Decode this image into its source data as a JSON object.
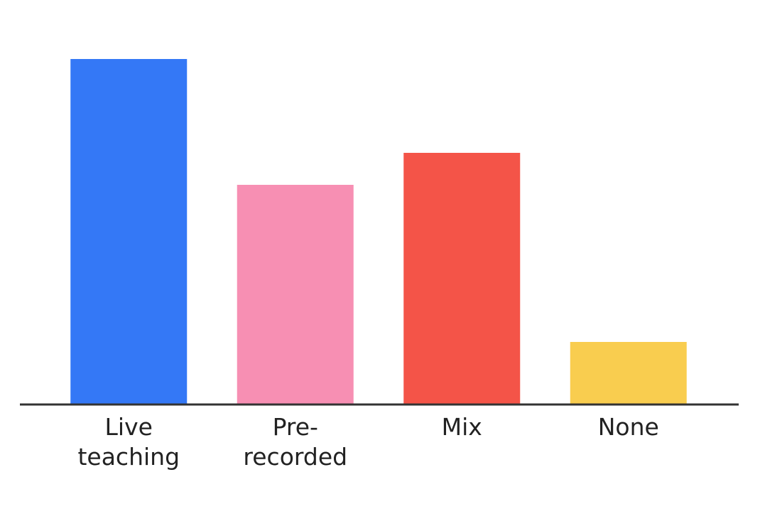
{
  "chart_data": {
    "type": "bar",
    "categories": [
      "Live teaching",
      "Pre-recorded",
      "Mix",
      "None"
    ],
    "values": [
      486,
      309,
      354,
      88
    ],
    "colors": [
      "#3478f6",
      "#f78fb3",
      "#f45448",
      "#f9cd4f"
    ],
    "ylim": [
      0,
      500
    ]
  }
}
